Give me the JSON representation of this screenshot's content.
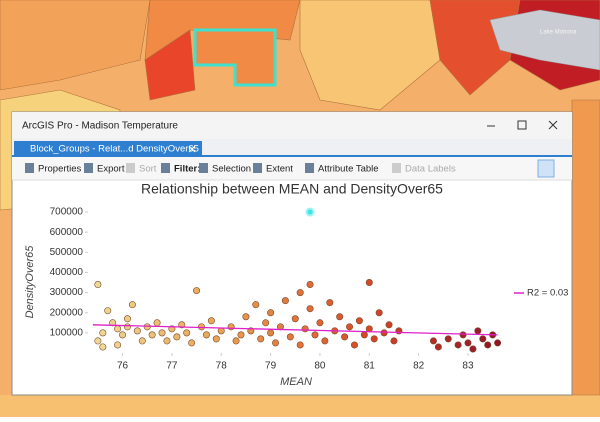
{
  "map": {
    "label": "Lake Monona"
  },
  "window": {
    "title": "ArcGIS Pro - Madison Temperature",
    "tab": "Block_Groups - Relat...d DensityOver65"
  },
  "toolbar": [
    "Properties",
    "Export",
    "Sort",
    "Filter:",
    "Selection",
    "Extent",
    "Attribute Table",
    "Data Labels"
  ],
  "chart_data": {
    "type": "scatter",
    "title": "Relationship between MEAN and DensityOver65",
    "x_label": "MEAN",
    "y_label": "DensityOver65",
    "xlim": [
      75.3,
      83.75
    ],
    "ylim": [
      0,
      730000
    ],
    "xticks": [
      76,
      77,
      78,
      79,
      80,
      81,
      82,
      83
    ],
    "yticks": [
      100000,
      200000,
      300000,
      400000,
      500000,
      600000,
      700000
    ],
    "color_ramp": [
      "#f0dc9c",
      "#e8a050",
      "#d84828",
      "#8c1028"
    ],
    "x": [
      75.5,
      75.5,
      75.6,
      75.6,
      75.7,
      75.8,
      75.9,
      75.9,
      76.0,
      76.1,
      76.1,
      76.2,
      76.3,
      76.4,
      76.5,
      76.6,
      76.7,
      76.8,
      76.9,
      77.0,
      77.1,
      77.2,
      77.3,
      77.4,
      77.5,
      77.6,
      77.7,
      77.8,
      77.9,
      78.0,
      78.2,
      78.3,
      78.4,
      78.5,
      78.6,
      78.7,
      78.8,
      78.9,
      79.0,
      79.0,
      79.1,
      79.2,
      79.3,
      79.4,
      79.5,
      79.6,
      79.6,
      79.7,
      79.8,
      79.8,
      79.9,
      80.0,
      80.1,
      80.2,
      80.3,
      80.4,
      80.5,
      80.6,
      80.7,
      80.8,
      80.9,
      81.0,
      81.0,
      81.1,
      81.2,
      81.3,
      81.4,
      81.5,
      81.6,
      82.3,
      82.4,
      82.6,
      82.8,
      82.9,
      83.0,
      83.1,
      83.2,
      83.3,
      83.4,
      83.5,
      83.6
    ],
    "y": [
      340000,
      60000,
      30000,
      100000,
      210000,
      150000,
      120000,
      40000,
      90000,
      130000,
      170000,
      240000,
      110000,
      60000,
      130000,
      90000,
      150000,
      100000,
      60000,
      120000,
      80000,
      140000,
      100000,
      50000,
      310000,
      130000,
      90000,
      160000,
      70000,
      110000,
      130000,
      60000,
      90000,
      180000,
      110000,
      240000,
      70000,
      150000,
      100000,
      200000,
      50000,
      130000,
      260000,
      80000,
      170000,
      40000,
      300000,
      120000,
      220000,
      340000,
      90000,
      150000,
      60000,
      250000,
      110000,
      180000,
      80000,
      130000,
      40000,
      160000,
      90000,
      350000,
      120000,
      70000,
      200000,
      100000,
      140000,
      60000,
      110000,
      60000,
      30000,
      70000,
      40000,
      90000,
      50000,
      20000,
      110000,
      70000,
      40000,
      90000,
      50000
    ],
    "highlight": {
      "x": 79.8,
      "y": 700000,
      "color": "#3ee6e6"
    },
    "trendline": {
      "name": "R2 = 0.03",
      "color": "#e020c8",
      "x": [
        75.4,
        83.6
      ],
      "y": [
        140000,
        90000
      ]
    }
  }
}
